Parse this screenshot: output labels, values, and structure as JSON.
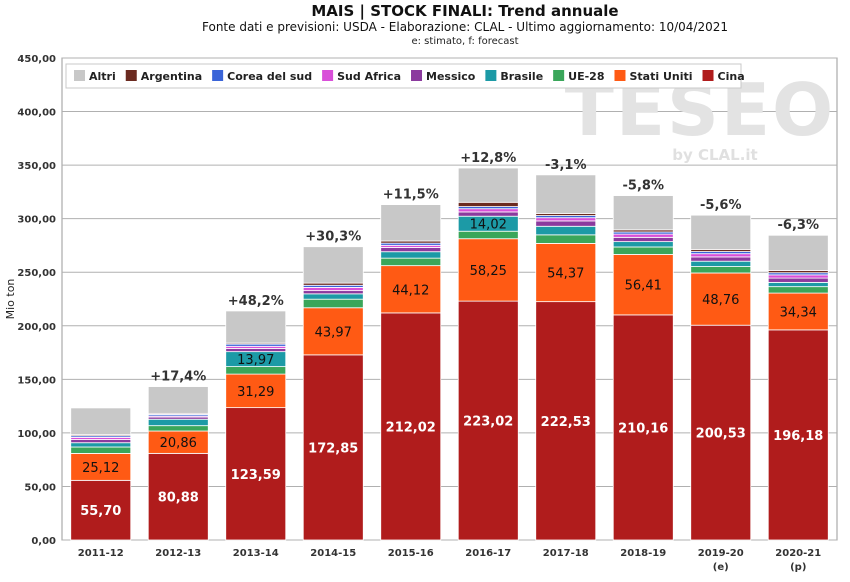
{
  "chart_data": {
    "type": "bar",
    "stacked": true,
    "title": "MAIS | STOCK FINALI: Trend annuale",
    "subtitle": "Fonte dati e previsioni: USDA - Elaborazione: CLAL - Ultimo aggiornamento: 10/04/2021",
    "note": "e: stimato, f: forecast",
    "ylabel": "Mio ton",
    "xlabel": "",
    "ylim": [
      0,
      450
    ],
    "yticks": [
      "0,00",
      "50,00",
      "100,00",
      "150,00",
      "200,00",
      "250,00",
      "300,00",
      "350,00",
      "400,00",
      "450,00"
    ],
    "grid": true,
    "legend_position": "top",
    "watermark": "TESEO by CLAL.it",
    "categories": [
      "2011-12",
      "2012-13",
      "2013-14",
      "2014-15",
      "2015-16",
      "2016-17",
      "2017-18",
      "2018-19",
      "2019-20",
      "2020-21"
    ],
    "category_sublabels": [
      "",
      "",
      "",
      "",
      "",
      "",
      "",
      "",
      "(e)",
      "(p)"
    ],
    "growth_labels": [
      "",
      "+17,4%",
      "+48,2%",
      "+30,3%",
      "+11,5%",
      "+12,8%",
      "-3,1%",
      "-5,8%",
      "-5,6%",
      "-6,3%"
    ],
    "series": [
      {
        "name": "Cina",
        "color": "#b01c1c",
        "values": [
          55.7,
          80.88,
          123.59,
          172.85,
          212.02,
          223.02,
          222.53,
          210.16,
          200.53,
          196.18
        ],
        "labels": [
          "55,70",
          "80,88",
          "123,59",
          "172,85",
          "212,02",
          "223,02",
          "222,53",
          "210,16",
          "200,53",
          "196,18"
        ]
      },
      {
        "name": "Stati Uniti",
        "color": "#ff5a14",
        "values": [
          25.12,
          20.86,
          31.29,
          43.97,
          44.12,
          58.25,
          54.37,
          56.41,
          48.76,
          34.34
        ],
        "labels": [
          "25,12",
          "20,86",
          "31,29",
          "43,97",
          "44,12",
          "58,25",
          "54,37",
          "56,41",
          "48,76",
          "34,34"
        ]
      },
      {
        "name": "UE-28",
        "color": "#3aa65a",
        "values": [
          6,
          5,
          7,
          8,
          7,
          7,
          8,
          7,
          6,
          6
        ]
      },
      {
        "name": "Brasile",
        "color": "#1c9aa6",
        "values": [
          4,
          6,
          13.97,
          5,
          6,
          14.02,
          8,
          5,
          5,
          4
        ],
        "labels": [
          "",
          "",
          "13,97",
          "",
          "",
          "14,02",
          "",
          "",
          "",
          ""
        ]
      },
      {
        "name": "Messico",
        "color": "#8b3a9e",
        "values": [
          3,
          2,
          3,
          3,
          4,
          4,
          5,
          4,
          4,
          4
        ]
      },
      {
        "name": "Sud Africa",
        "color": "#d94fd9",
        "values": [
          2,
          1,
          2,
          3,
          2,
          3,
          3,
          3,
          3,
          3
        ]
      },
      {
        "name": "Corea del sud",
        "color": "#3a64d8",
        "values": [
          1.5,
          1.5,
          2,
          2,
          2,
          2,
          2,
          2,
          2,
          2
        ]
      },
      {
        "name": "Argentina",
        "color": "#6b2a20",
        "values": [
          1,
          1,
          1,
          2,
          2,
          4,
          2,
          2,
          2,
          2
        ]
      },
      {
        "name": "Altri",
        "color": "#c8c8c8",
        "values": [
          25,
          25,
          30,
          34,
          34,
          32,
          36,
          32,
          32,
          33
        ]
      }
    ]
  }
}
